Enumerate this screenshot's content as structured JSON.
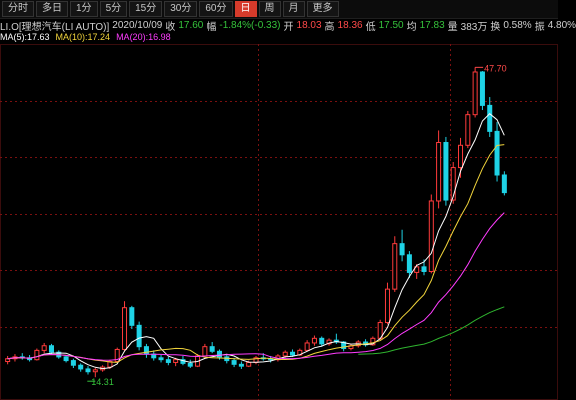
{
  "tabs": [
    {
      "label": "分时",
      "active": false
    },
    {
      "label": "多日",
      "active": false
    },
    {
      "label": "1分",
      "active": false
    },
    {
      "label": "5分",
      "active": false
    },
    {
      "label": "15分",
      "active": false
    },
    {
      "label": "30分",
      "active": false
    },
    {
      "label": "60分",
      "active": false
    },
    {
      "label": "日",
      "active": true
    },
    {
      "label": "周",
      "active": false
    },
    {
      "label": "月",
      "active": false
    },
    {
      "label": "更多",
      "active": false
    }
  ],
  "info": {
    "name": "LI.O[理想汽车(LI AUTO)]",
    "date": "2020/10/09",
    "close_label": "收",
    "close": "17.60",
    "change_label": "幅",
    "change": "-1.84%(-0.33)",
    "open_label": "开",
    "open": "18.03",
    "high_label": "高",
    "high": "18.36",
    "low_label": "低",
    "low": "17.50",
    "avg_label": "均",
    "avg": "17.83",
    "volume_label": "量",
    "volume": "383万",
    "turnover_label": "换",
    "turnover": "0.58%",
    "amplitude_label": "振",
    "amplitude": "4.80%"
  },
  "ma_legend": {
    "ma5": "MA(5):17.63",
    "ma10": "MA(10):17.24",
    "ma20": "MA(20):16.98"
  },
  "colors": {
    "up": "#ff3b3b",
    "down": "#1fd3e6",
    "ma5": "#ffffff",
    "ma10": "#f2d53c",
    "ma20": "#ff3cff",
    "ma_long": "#2fb52f",
    "grid": "#7a1010",
    "tab_active": "#d63b2b"
  },
  "chart_data": {
    "type": "candlestick",
    "ylim": [
      12.5,
      50
    ],
    "annotations": {
      "max_label": "47.70",
      "min_label": "14.31"
    },
    "candles": [
      [
        16.0,
        16.6,
        15.7,
        16.3
      ],
      [
        16.3,
        16.8,
        16.0,
        16.5
      ],
      [
        16.5,
        16.9,
        16.2,
        16.4
      ],
      [
        16.4,
        16.7,
        16.0,
        16.2
      ],
      [
        16.2,
        17.4,
        16.1,
        17.2
      ],
      [
        17.2,
        18.0,
        16.9,
        17.7
      ],
      [
        17.7,
        17.9,
        16.8,
        17.0
      ],
      [
        17.0,
        17.2,
        16.3,
        16.5
      ],
      [
        16.5,
        16.7,
        15.9,
        16.1
      ],
      [
        16.1,
        16.3,
        15.3,
        15.6
      ],
      [
        15.6,
        15.8,
        14.9,
        15.2
      ],
      [
        15.2,
        15.5,
        14.6,
        14.9
      ],
      [
        14.9,
        15.3,
        14.31,
        15.1
      ],
      [
        15.1,
        15.6,
        14.9,
        15.4
      ],
      [
        15.4,
        16.2,
        15.2,
        16.0
      ],
      [
        16.0,
        17.5,
        15.9,
        17.3
      ],
      [
        17.3,
        22.5,
        17.1,
        21.8
      ],
      [
        21.8,
        22.0,
        19.5,
        19.9
      ],
      [
        19.9,
        20.3,
        17.2,
        17.6
      ],
      [
        17.6,
        17.9,
        16.4,
        16.8
      ],
      [
        16.8,
        17.2,
        16.1,
        16.4
      ],
      [
        16.4,
        16.7,
        15.9,
        16.2
      ],
      [
        16.2,
        16.5,
        15.6,
        15.9
      ],
      [
        15.9,
        16.4,
        15.5,
        16.2
      ],
      [
        16.2,
        16.6,
        15.6,
        15.8
      ],
      [
        15.8,
        16.2,
        15.3,
        15.5
      ],
      [
        15.5,
        16.8,
        15.4,
        16.6
      ],
      [
        16.6,
        17.9,
        16.5,
        17.6
      ],
      [
        17.6,
        18.1,
        16.9,
        17.1
      ],
      [
        17.1,
        17.3,
        16.2,
        16.5
      ],
      [
        16.5,
        16.8,
        15.8,
        16.1
      ],
      [
        16.1,
        16.4,
        15.4,
        15.7
      ],
      [
        15.7,
        16.0,
        15.2,
        15.5
      ],
      [
        15.5,
        16.1,
        15.4,
        15.9
      ],
      [
        15.9,
        16.6,
        15.7,
        16.4
      ],
      [
        16.4,
        16.9,
        16.1,
        16.3
      ],
      [
        16.3,
        16.6,
        15.9,
        16.2
      ],
      [
        16.2,
        16.8,
        16.0,
        16.6
      ],
      [
        16.6,
        17.2,
        16.4,
        17.0
      ],
      [
        17.0,
        17.3,
        16.5,
        16.7
      ],
      [
        16.7,
        17.4,
        16.6,
        17.2
      ],
      [
        17.2,
        18.3,
        17.1,
        18.0
      ],
      [
        18.0,
        18.8,
        17.7,
        18.5
      ],
      [
        18.5,
        18.7,
        17.6,
        17.9
      ],
      [
        17.9,
        18.5,
        17.7,
        18.3
      ],
      [
        18.3,
        19.0,
        17.9,
        18.1
      ],
      [
        18.1,
        18.2,
        17.1,
        17.4
      ],
      [
        17.4,
        17.9,
        17.2,
        17.7
      ],
      [
        17.7,
        18.3,
        17.5,
        18.1
      ],
      [
        18.1,
        18.4,
        17.6,
        17.8
      ],
      [
        17.8,
        18.7,
        17.7,
        18.5
      ],
      [
        18.5,
        20.5,
        18.3,
        20.2
      ],
      [
        20.2,
        24.5,
        20.0,
        23.8
      ],
      [
        23.8,
        29.5,
        23.5,
        28.7
      ],
      [
        28.7,
        30.2,
        26.8,
        27.5
      ],
      [
        27.5,
        27.9,
        25.0,
        25.6
      ],
      [
        25.6,
        26.5,
        24.9,
        26.2
      ],
      [
        26.2,
        27.0,
        25.3,
        25.7
      ],
      [
        25.7,
        34.0,
        25.5,
        33.3
      ],
      [
        33.3,
        40.9,
        32.5,
        39.6
      ],
      [
        39.6,
        40.2,
        32.8,
        33.4
      ],
      [
        33.4,
        37.5,
        33.0,
        36.9
      ],
      [
        36.9,
        40.1,
        35.8,
        39.3
      ],
      [
        39.3,
        43.0,
        39.0,
        42.6
      ],
      [
        42.6,
        47.7,
        42.3,
        47.2
      ],
      [
        47.2,
        47.3,
        43.1,
        43.6
      ],
      [
        43.6,
        44.5,
        40.2,
        40.8
      ],
      [
        40.8,
        41.8,
        35.4,
        36.1
      ],
      [
        36.1,
        36.5,
        33.9,
        34.2
      ]
    ],
    "series": [
      {
        "name": "MA5",
        "period": 5
      },
      {
        "name": "MA10",
        "period": 10
      },
      {
        "name": "MA20",
        "period": 20
      },
      {
        "period": 60
      }
    ]
  }
}
